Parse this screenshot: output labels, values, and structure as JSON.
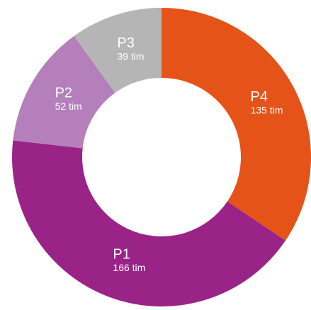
{
  "chart_data": {
    "type": "donut",
    "categories": [
      "P4",
      "P1",
      "P2",
      "P3"
    ],
    "values": [
      135,
      166,
      52,
      39
    ],
    "value_labels": [
      "135 tim",
      "166 tim",
      "52 tim",
      "39 tim"
    ],
    "colors": [
      "#e65318",
      "#9a2387",
      "#b47fbb",
      "#b5b5b5"
    ]
  }
}
